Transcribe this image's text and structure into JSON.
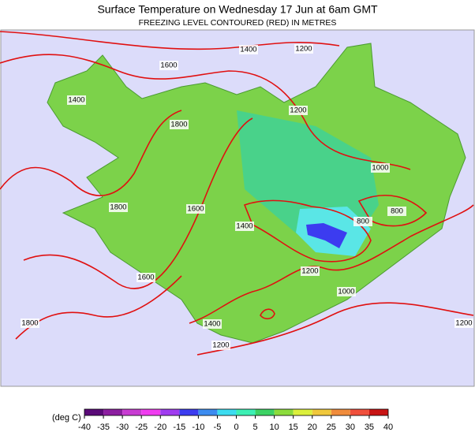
{
  "header": {
    "title": "Surface Temperature on Wednesday 17 Jun at 6am GMT",
    "subtitle": "FREEZING LEVEL CONTOURED (RED) IN METRES"
  },
  "contours": [
    1400,
    1200,
    1600,
    1400,
    1800,
    1200,
    1000,
    1800,
    1600,
    1400,
    800,
    800,
    1200,
    1000,
    1600,
    1400,
    1200,
    1800,
    1200
  ],
  "colorbar": {
    "label": "(deg C)",
    "range": [
      -40,
      40
    ],
    "ticks": [
      -40,
      -35,
      -30,
      -25,
      -20,
      -15,
      -10,
      -5,
      0,
      5,
      10,
      15,
      20,
      25,
      30,
      35,
      40
    ],
    "colors": [
      "#5a0a78",
      "#8c1ea0",
      "#c83cd2",
      "#f03cf0",
      "#a03cf0",
      "#3c3cf0",
      "#3c8cf0",
      "#3cdcf0",
      "#3cf0b4",
      "#3cd264",
      "#8cdc3c",
      "#dcf03c",
      "#f0c83c",
      "#f08c3c",
      "#f0503c",
      "#c81414"
    ]
  }
}
